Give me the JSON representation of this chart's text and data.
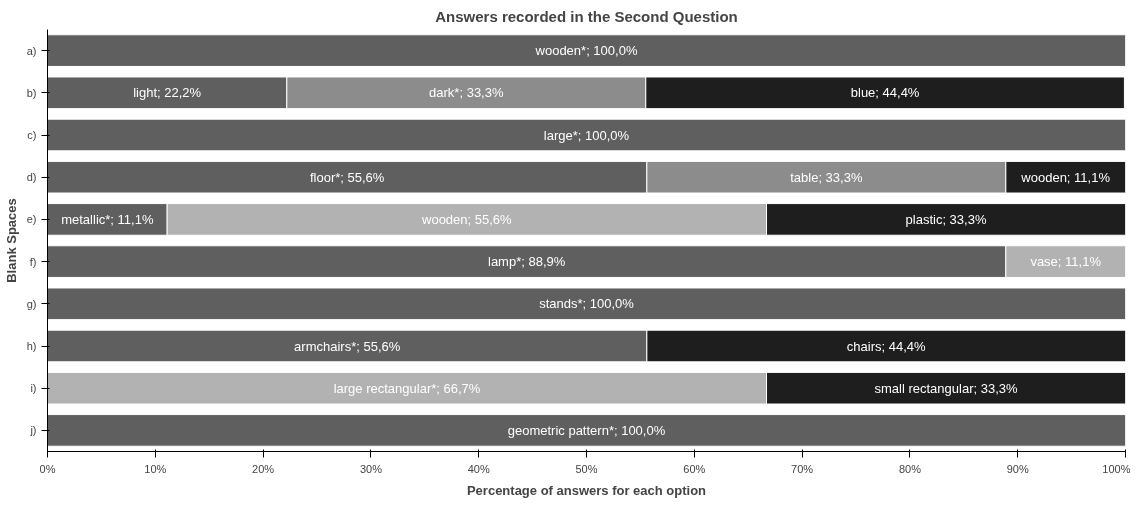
{
  "chart_data": {
    "type": "bar",
    "orientation": "horizontal",
    "stacked": true,
    "title": "Answers recorded in the Second Question",
    "xlabel": "Percentage of answers for each option",
    "ylabel": "Blank Spaces",
    "categories": [
      "a)",
      "b)",
      "c)",
      "d)",
      "e)",
      "f)",
      "g)",
      "h)",
      "i)",
      "j)"
    ],
    "xlim": [
      0,
      100
    ],
    "xticks": [
      {
        "value": 0,
        "label": "0%"
      },
      {
        "value": 10,
        "label": "10%"
      },
      {
        "value": 20,
        "label": "20%"
      },
      {
        "value": 30,
        "label": "30%"
      },
      {
        "value": 40,
        "label": "40%"
      },
      {
        "value": 50,
        "label": "50%"
      },
      {
        "value": 60,
        "label": "60%"
      },
      {
        "value": 70,
        "label": "70%"
      },
      {
        "value": 80,
        "label": "80%"
      },
      {
        "value": 90,
        "label": "90%"
      },
      {
        "value": 100,
        "label": "100%"
      }
    ],
    "grid": false,
    "series": [
      {
        "values": [
          100,
          22.2,
          100,
          55.6,
          11.1,
          88.9,
          100,
          55.6,
          66.7,
          100
        ],
        "colors": [
          "#5f5f5f",
          "#5f5f5f",
          "#5f5f5f",
          "#5f5f5f",
          "#5f5f5f",
          "#5f5f5f",
          "#5f5f5f",
          "#5f5f5f",
          "#b2b2b2",
          "#5f5f5f"
        ],
        "value_labels": [
          "wooden*; 100,0%",
          "light; 22,2%",
          "large*; 100,0%",
          "floor*; 55,6%",
          "metallic*; 11,1%",
          "lamp*; 88,9%",
          "stands*; 100,0%",
          "armchairs*; 55,6%",
          "large rectangular*; 66,7%",
          "geometric pattern*; 100,0%"
        ]
      },
      {
        "values": [
          null,
          33.3,
          null,
          33.3,
          55.6,
          11.1,
          null,
          44.4,
          33.3,
          null
        ],
        "colors": [
          null,
          "#8c8c8c",
          null,
          "#8c8c8c",
          "#b2b2b2",
          "#b2b2b2",
          null,
          "#1e1e1e",
          "#1e1e1e",
          null
        ],
        "value_labels": [
          null,
          "dark*; 33,3%",
          null,
          "table; 33,3%",
          "wooden; 55,6%",
          "vase; 11,1%",
          null,
          "chairs; 44,4%",
          "small rectangular; 33,3%",
          null
        ]
      },
      {
        "values": [
          null,
          44.4,
          null,
          11.1,
          33.3,
          null,
          null,
          null,
          null,
          null
        ],
        "colors": [
          null,
          "#1e1e1e",
          null,
          "#1e1e1e",
          "#1e1e1e",
          null,
          null,
          null,
          null,
          null
        ],
        "value_labels": [
          null,
          "blue; 44,4%",
          null,
          "wooden; 11,1%",
          "plastic; 33,3%",
          null,
          null,
          null,
          null,
          null
        ]
      }
    ]
  }
}
